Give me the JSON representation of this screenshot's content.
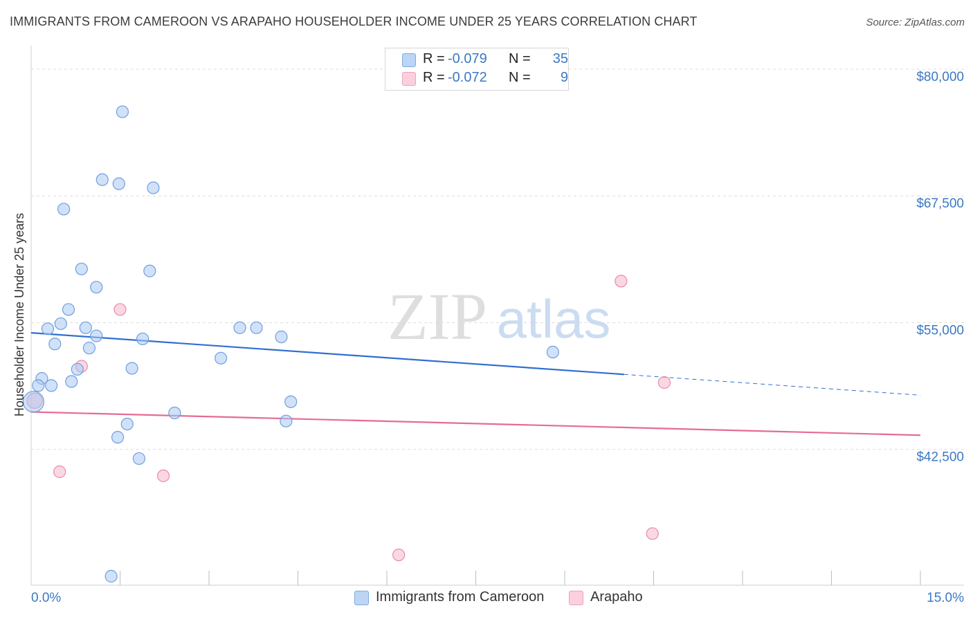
{
  "header": {
    "title": "IMMIGRANTS FROM CAMEROON VS ARAPAHO HOUSEHOLDER INCOME UNDER 25 YEARS CORRELATION CHART",
    "source": "Source: ZipAtlas.com"
  },
  "legend": {
    "rows": [
      {
        "r_label": "R =",
        "r_value": "-0.079",
        "n_label": "N =",
        "n_value": "35",
        "color": "#a9c8f2"
      },
      {
        "r_label": "R =",
        "r_value": "-0.072",
        "n_label": "N =",
        "n_value": "9",
        "color": "#f6b8cb"
      }
    ]
  },
  "bottom_legend": {
    "items": [
      {
        "label": "Immigrants from Cameroon",
        "color": "#a9c8f2"
      },
      {
        "label": "Arapaho",
        "color": "#f6b8cb"
      }
    ]
  },
  "watermark": {
    "zip": "ZIP",
    "atlas": "atlas"
  },
  "chart_data": {
    "type": "scatter",
    "title": "IMMIGRANTS FROM CAMEROON VS ARAPAHO HOUSEHOLDER INCOME UNDER 25 YEARS CORRELATION CHART",
    "xlabel": "",
    "ylabel": "Householder Income Under 25 years",
    "xlim": [
      0,
      15
    ],
    "ylim": [
      30000,
      81500
    ],
    "x_tick_labels": [
      {
        "value": 0,
        "label": "0.0%"
      },
      {
        "value": 15,
        "label": "15.0%"
      }
    ],
    "y_ticks": [
      {
        "value": 80000,
        "label": "$80,000"
      },
      {
        "value": 67500,
        "label": "$67,500"
      },
      {
        "value": 55000,
        "label": "$55,000"
      },
      {
        "value": 42500,
        "label": "$42,500"
      }
    ],
    "series": [
      {
        "name": "Immigrants from Cameroon",
        "color": "#a9c8f2",
        "stroke": "#6e9fe0",
        "trend_color": "#2f6fd0",
        "points": [
          {
            "x": 1.54,
            "y": 75800
          },
          {
            "x": 1.2,
            "y": 69100
          },
          {
            "x": 1.48,
            "y": 68700
          },
          {
            "x": 2.06,
            "y": 68300
          },
          {
            "x": 0.55,
            "y": 66200
          },
          {
            "x": 0.85,
            "y": 60300
          },
          {
            "x": 2.0,
            "y": 60100
          },
          {
            "x": 1.1,
            "y": 58500
          },
          {
            "x": 0.63,
            "y": 56300
          },
          {
            "x": 0.5,
            "y": 54900
          },
          {
            "x": 0.28,
            "y": 54400
          },
          {
            "x": 0.92,
            "y": 54500
          },
          {
            "x": 3.52,
            "y": 54500
          },
          {
            "x": 3.8,
            "y": 54500
          },
          {
            "x": 1.1,
            "y": 53700
          },
          {
            "x": 1.88,
            "y": 53400
          },
          {
            "x": 4.22,
            "y": 53600
          },
          {
            "x": 0.4,
            "y": 52900
          },
          {
            "x": 0.98,
            "y": 52500
          },
          {
            "x": 8.8,
            "y": 52100
          },
          {
            "x": 3.2,
            "y": 51500
          },
          {
            "x": 0.78,
            "y": 50400
          },
          {
            "x": 1.7,
            "y": 50500
          },
          {
            "x": 0.18,
            "y": 49500
          },
          {
            "x": 0.68,
            "y": 49200
          },
          {
            "x": 0.12,
            "y": 48800
          },
          {
            "x": 0.34,
            "y": 48800
          },
          {
            "x": 0.04,
            "y": 47200
          },
          {
            "x": 4.38,
            "y": 47200
          },
          {
            "x": 2.42,
            "y": 46100
          },
          {
            "x": 1.62,
            "y": 45000
          },
          {
            "x": 4.3,
            "y": 45300
          },
          {
            "x": 1.46,
            "y": 43700
          },
          {
            "x": 1.82,
            "y": 41600
          },
          {
            "x": 1.35,
            "y": 30000
          }
        ],
        "trend": {
          "x0": 0.0,
          "y0": 54000,
          "x1": 10.0,
          "y1": 49900,
          "dash_to_x": 15.0,
          "dash_to_y": 47850
        }
      },
      {
        "name": "Arapaho",
        "color": "#f6b8cb",
        "stroke": "#e88aa8",
        "trend_color": "#e56b94",
        "points": [
          {
            "x": 9.95,
            "y": 59100
          },
          {
            "x": 1.5,
            "y": 56300
          },
          {
            "x": 0.85,
            "y": 50700
          },
          {
            "x": 10.68,
            "y": 49100
          },
          {
            "x": 0.06,
            "y": 47300
          },
          {
            "x": 0.48,
            "y": 40300
          },
          {
            "x": 2.23,
            "y": 39900
          },
          {
            "x": 10.48,
            "y": 34200
          },
          {
            "x": 6.2,
            "y": 32100
          }
        ],
        "trend": {
          "x0": 0.0,
          "y0": 46200,
          "x1": 15.0,
          "y1": 43900
        }
      }
    ]
  }
}
